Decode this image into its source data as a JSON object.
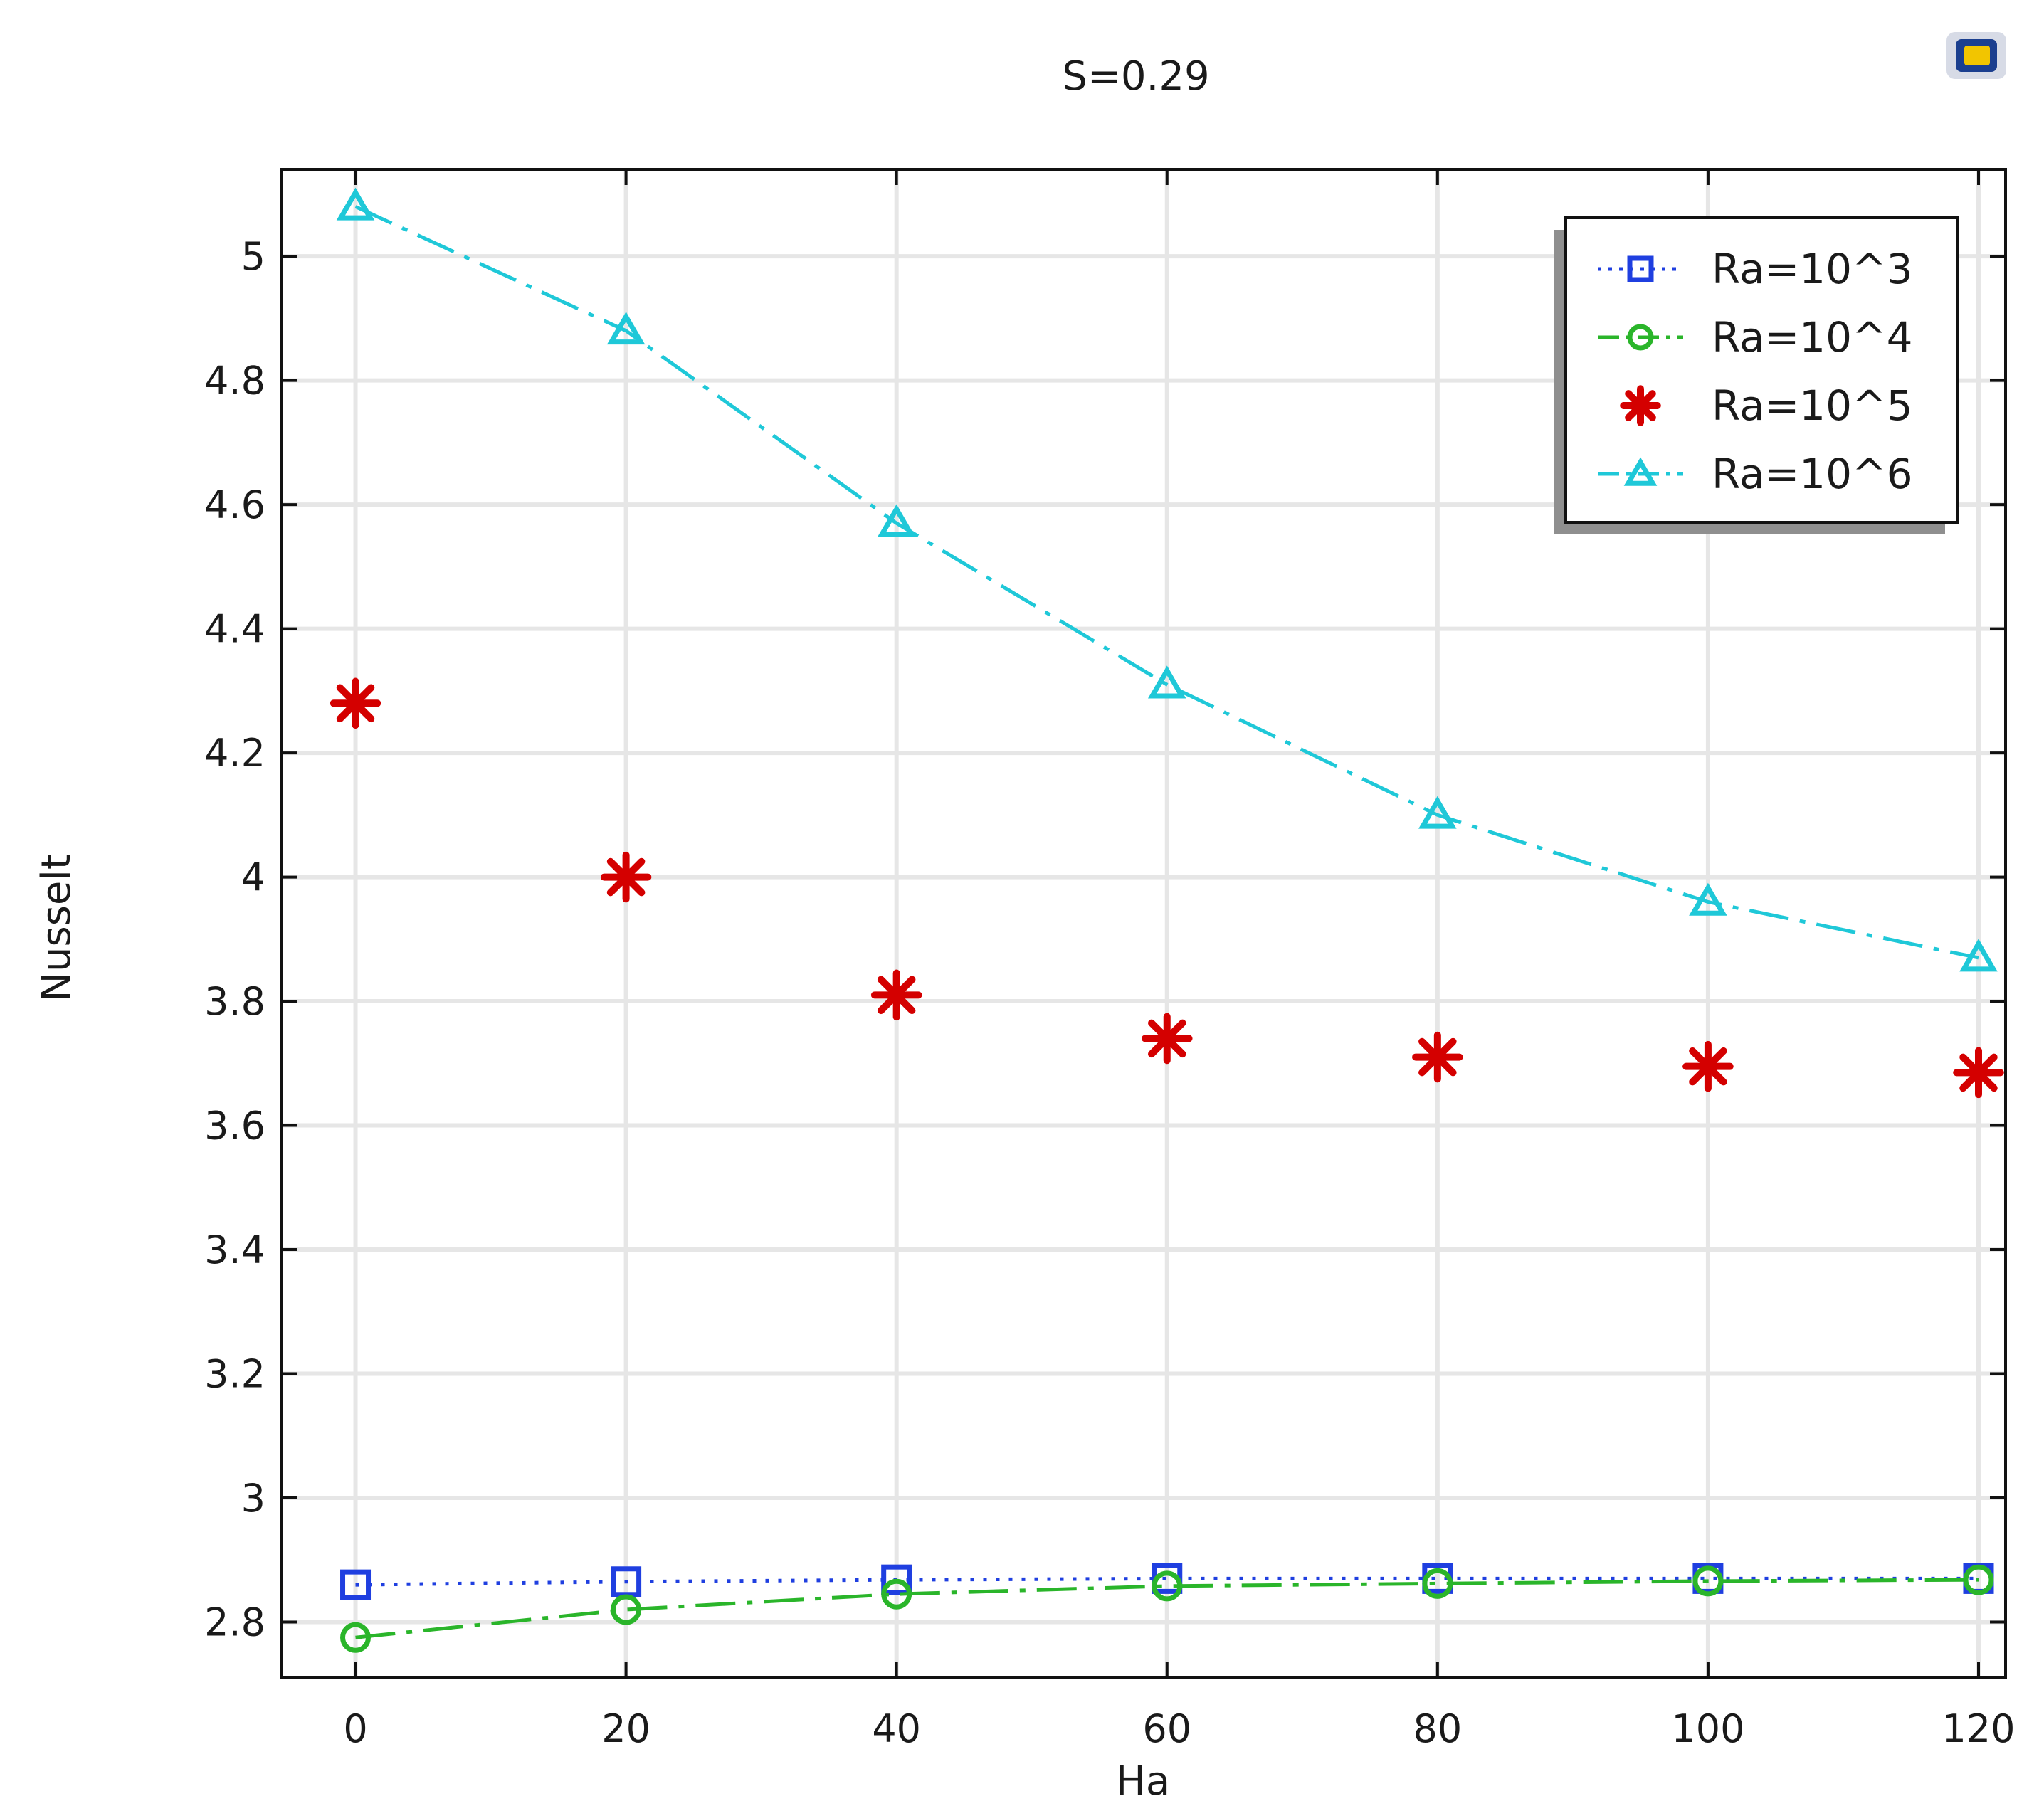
{
  "chart_data": {
    "type": "line",
    "title": "S=0.29",
    "xlabel": "Ha",
    "ylabel": "Nusselt",
    "xlim": [
      -5.5,
      122
    ],
    "ylim": [
      2.71,
      5.14
    ],
    "xticks": [
      0,
      20,
      40,
      60,
      80,
      100,
      120
    ],
    "yticks": [
      2.8,
      3,
      3.2,
      3.4,
      3.6,
      3.8,
      4,
      4.2,
      4.4,
      4.6,
      4.8,
      5
    ],
    "grid": true,
    "legend_position": "top-right",
    "x": [
      0,
      20,
      40,
      60,
      80,
      100,
      120
    ],
    "series": [
      {
        "name": "Ra=10^3",
        "color": "#1f3fe0",
        "marker": "square",
        "line": "dotted",
        "values": [
          2.86,
          2.865,
          2.868,
          2.87,
          2.87,
          2.87,
          2.87
        ]
      },
      {
        "name": "Ra=10^4",
        "color": "#2ab52a",
        "marker": "circle",
        "line": "dash-dot",
        "values": [
          2.775,
          2.82,
          2.845,
          2.858,
          2.862,
          2.866,
          2.868
        ]
      },
      {
        "name": "Ra=10^5",
        "color": "#d40000",
        "marker": "asterisk",
        "line": "none",
        "values": [
          4.28,
          4.0,
          3.81,
          3.74,
          3.71,
          3.695,
          3.685
        ]
      },
      {
        "name": "Ra=10^6",
        "color": "#1fc8d8",
        "marker": "triangle",
        "line": "dash-dot",
        "values": [
          5.08,
          4.88,
          4.57,
          4.31,
          4.1,
          3.96,
          3.87
        ]
      }
    ]
  },
  "toolbar_icon": "image-icon"
}
